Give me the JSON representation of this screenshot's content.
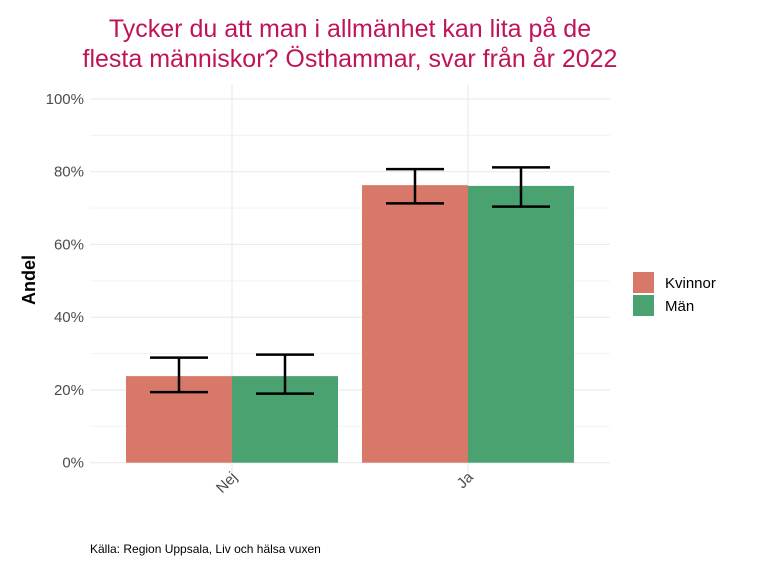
{
  "chart_data": {
    "type": "bar",
    "title_lines": [
      "Tycker du att man i allmänhet kan lita på de",
      "flesta människor? Östhammar, svar från år 2022"
    ],
    "xlabel": "",
    "ylabel": "Andel",
    "categories": [
      "Nej",
      "Ja"
    ],
    "ylim": [
      0,
      100
    ],
    "yticks": [
      0,
      20,
      40,
      60,
      80,
      100
    ],
    "ytick_labels": [
      "0%",
      "20%",
      "40%",
      "60%",
      "80%",
      "100%"
    ],
    "grid": true,
    "legend_position": "right",
    "series": [
      {
        "name": "Kvinnor",
        "color": "#D77868",
        "values": [
          23.8,
          76.3
        ],
        "lower": [
          19.4,
          71.3
        ],
        "upper": [
          28.9,
          80.7
        ]
      },
      {
        "name": "Män",
        "color": "#4AA270",
        "values": [
          23.8,
          76.1
        ],
        "lower": [
          19.0,
          70.4
        ],
        "upper": [
          29.7,
          81.2
        ]
      }
    ],
    "caption": "Källa: Region Uppsala, Liv och hälsa vuxen",
    "title_color": "#C0145A"
  }
}
